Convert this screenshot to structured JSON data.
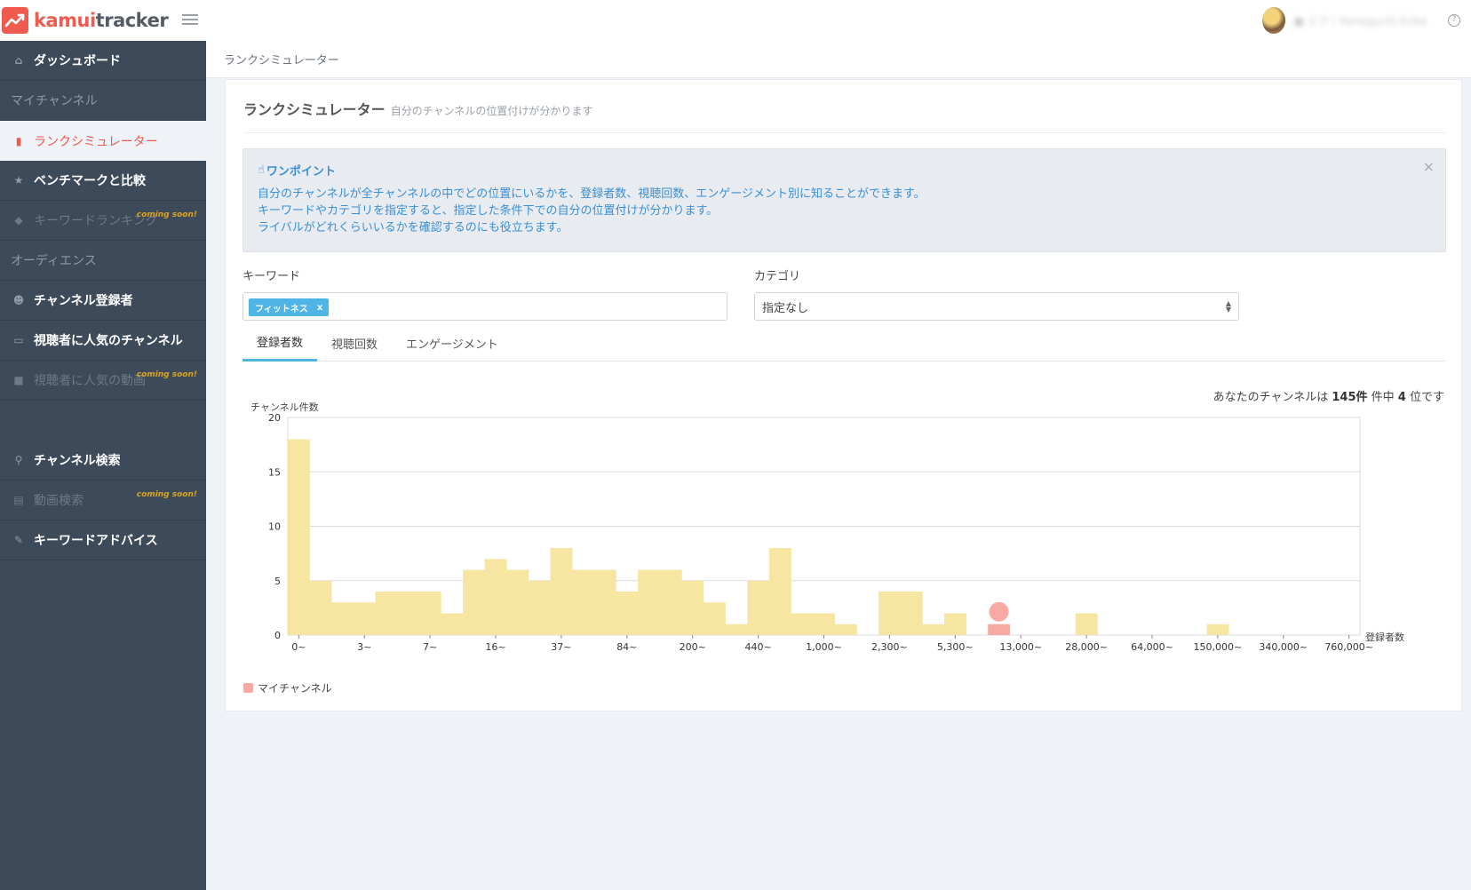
{
  "app": {
    "logo_part1": "kamui",
    "logo_part2": "tracker",
    "user_name": "■ エア / Yamaguchi Erika",
    "help": "?"
  },
  "sidebar": {
    "items": [
      {
        "label": "ダッシュボード",
        "type": "link",
        "icon": "home-icon"
      },
      {
        "label": "マイチャンネル",
        "type": "section"
      },
      {
        "label": "ランクシミュレーター",
        "type": "active",
        "icon": "bar-chart-icon"
      },
      {
        "label": "ベンチマークと比較",
        "type": "link",
        "icon": "star-icon"
      },
      {
        "label": "キーワードランキング",
        "type": "disabled",
        "icon": "tag-icon",
        "badge": "coming soon!"
      },
      {
        "label": "オーディエンス",
        "type": "section"
      },
      {
        "label": "チャンネル登録者",
        "type": "link",
        "icon": "users-icon"
      },
      {
        "label": "視聴者に人気のチャンネル",
        "type": "link",
        "icon": "play-screen-icon"
      },
      {
        "label": "視聴者に人気の動画",
        "type": "disabled",
        "icon": "video-camera-icon",
        "badge": "coming soon!"
      },
      {
        "label": "",
        "type": "gap"
      },
      {
        "label": "チャンネル検索",
        "type": "link",
        "icon": "search-icon"
      },
      {
        "label": "動画検索",
        "type": "disabled",
        "icon": "file-search-icon",
        "badge": "coming soon!"
      },
      {
        "label": "キーワードアドバイス",
        "type": "link",
        "icon": "pencil-icon"
      }
    ]
  },
  "breadcrumb": "ランクシミュレーター",
  "page": {
    "title": "ランクシミュレーター",
    "subtitle": "自分のチャンネルの位置付けが分かります"
  },
  "tip": {
    "title": "ワンポイント",
    "lines": [
      "自分のチャンネルが全チャンネルの中でどの位置にいるかを、登録者数、視聴回数、エンゲージメント別に知ることができます。",
      "キーワードやカテゴリを指定すると、指定した条件下での自分の位置付けが分かります。",
      "ライバルがどれくらいいるかを確認するのにも役立ちます。"
    ],
    "close": "×"
  },
  "filters": {
    "keyword_label": "キーワード",
    "keyword_chip": "フィットネス",
    "chip_remove": "x",
    "category_label": "カテゴリ",
    "category_value": "指定なし"
  },
  "tabs": [
    "登録者数",
    "視聴回数",
    "エンゲージメント"
  ],
  "rank": {
    "prefix": "あなたのチャンネルは",
    "total": "145件",
    "middle": "件中",
    "position": "4",
    "suffix": "位です"
  },
  "legend": {
    "label": "マイチャンネル"
  },
  "colors": {
    "bar": "#f7e6a2",
    "mine": "#f7a9a4",
    "accent": "#f05a4f",
    "tab_active": "#4fb5e6",
    "tip_text": "#3a8fd6"
  },
  "chart_data": {
    "type": "bar",
    "ylabel": "チャンネル件数",
    "xlabel": "登録者数",
    "ylim": [
      0,
      20
    ],
    "yticks": [
      0,
      5,
      10,
      15,
      20
    ],
    "xtick_labels": [
      "0~",
      "3~",
      "7~",
      "16~",
      "37~",
      "84~",
      "200~",
      "440~",
      "1,000~",
      "2,300~",
      "5,300~",
      "13,000~",
      "28,000~",
      "64,000~",
      "150,000~",
      "340,000~",
      "760,000~"
    ],
    "values": [
      18,
      5,
      3,
      3,
      4,
      4,
      4,
      2,
      6,
      7,
      6,
      5,
      8,
      6,
      6,
      4,
      6,
      6,
      5,
      3,
      1,
      5,
      8,
      2,
      2,
      1,
      0,
      4,
      4,
      1,
      2,
      0,
      1,
      0,
      0,
      0,
      2,
      0,
      0,
      0,
      0,
      0,
      1,
      0,
      0,
      0,
      0,
      0,
      0
    ],
    "my_channel_bin": 32,
    "my_channel_value": 1,
    "grid": true,
    "legend": "bottom-left"
  }
}
